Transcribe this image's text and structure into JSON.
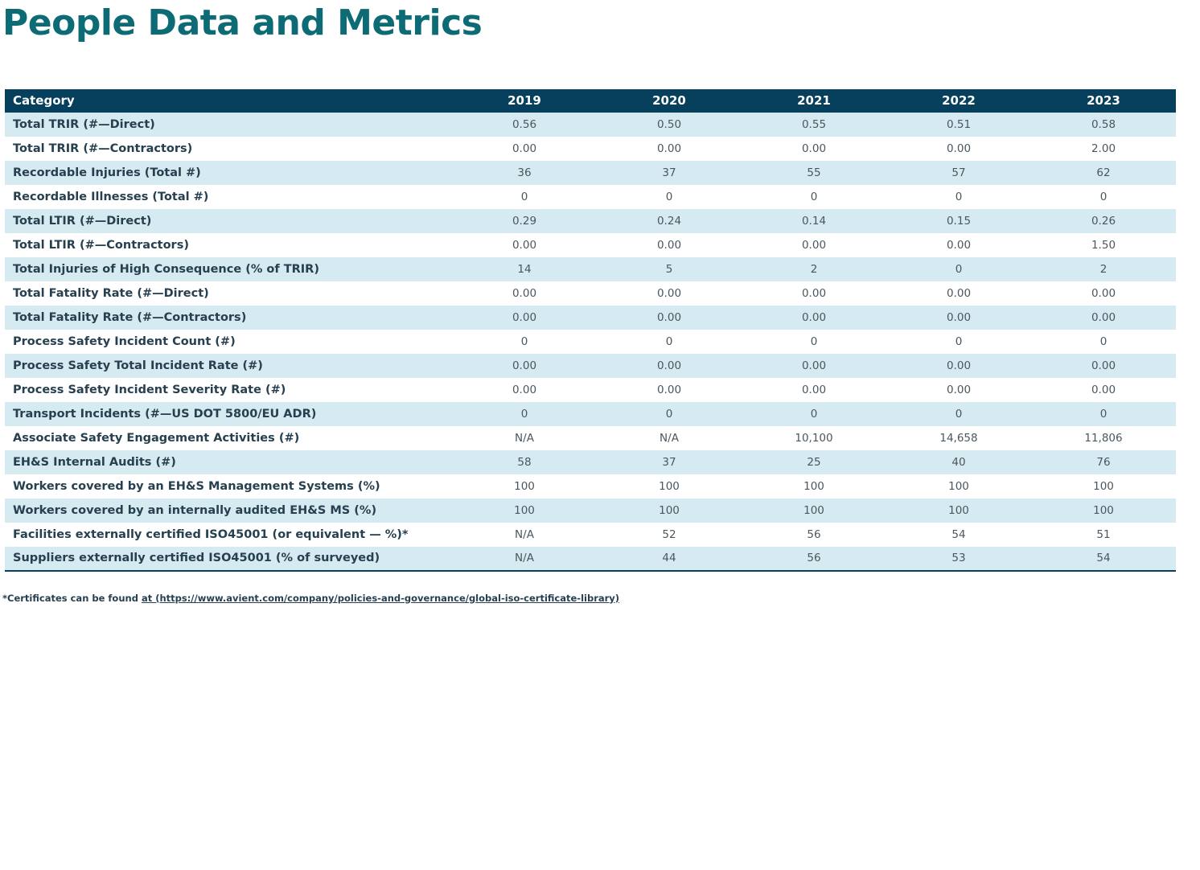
{
  "page": {
    "title": "People Data and Metrics"
  },
  "table": {
    "columns": [
      "Category",
      "2019",
      "2020",
      "2021",
      "2022",
      "2023"
    ],
    "rows": [
      {
        "label": "Total TRIR (#—Direct)",
        "values": [
          "0.56",
          "0.50",
          "0.55",
          "0.51",
          "0.58"
        ]
      },
      {
        "label": "Total TRIR (#—Contractors)",
        "values": [
          "0.00",
          "0.00",
          "0.00",
          "0.00",
          "2.00"
        ]
      },
      {
        "label": "Recordable Injuries (Total #)",
        "values": [
          "36",
          "37",
          "55",
          "57",
          "62"
        ]
      },
      {
        "label": "Recordable Illnesses (Total #)",
        "values": [
          "0",
          "0",
          "0",
          "0",
          "0"
        ]
      },
      {
        "label": "Total LTIR (#—Direct)",
        "values": [
          "0.29",
          "0.24",
          "0.14",
          "0.15",
          "0.26"
        ]
      },
      {
        "label": "Total LTIR (#—Contractors)",
        "values": [
          "0.00",
          "0.00",
          "0.00",
          "0.00",
          "1.50"
        ]
      },
      {
        "label": "Total Injuries of High Consequence (% of TRIR)",
        "values": [
          "14",
          "5",
          "2",
          "0",
          "2"
        ]
      },
      {
        "label": "Total Fatality Rate (#—Direct)",
        "values": [
          "0.00",
          "0.00",
          "0.00",
          "0.00",
          "0.00"
        ]
      },
      {
        "label": "Total Fatality Rate (#—Contractors)",
        "values": [
          "0.00",
          "0.00",
          "0.00",
          "0.00",
          "0.00"
        ]
      },
      {
        "label": "Process Safety Incident Count (#)",
        "values": [
          "0",
          "0",
          "0",
          "0",
          "0"
        ]
      },
      {
        "label": "Process Safety Total Incident Rate (#)",
        "values": [
          "0.00",
          "0.00",
          "0.00",
          "0.00",
          "0.00"
        ]
      },
      {
        "label": "Process Safety Incident Severity Rate (#)",
        "values": [
          "0.00",
          "0.00",
          "0.00",
          "0.00",
          "0.00"
        ]
      },
      {
        "label": "Transport Incidents (#—US DOT 5800/EU ADR)",
        "values": [
          "0",
          "0",
          "0",
          "0",
          "0"
        ]
      },
      {
        "label": "Associate Safety Engagement Activities (#)",
        "values": [
          "N/A",
          "N/A",
          "10,100",
          "14,658",
          "11,806"
        ]
      },
      {
        "label": "EH&S Internal Audits (#)",
        "values": [
          "58",
          "37",
          "25",
          "40",
          "76"
        ]
      },
      {
        "label": "Workers covered by an EH&S Management Systems (%)",
        "values": [
          "100",
          "100",
          "100",
          "100",
          "100"
        ]
      },
      {
        "label": "Workers covered by an internally audited EH&S MS (%)",
        "values": [
          "100",
          "100",
          "100",
          "100",
          "100"
        ]
      },
      {
        "label": "Facilities externally certified ISO45001 (or equivalent — %)*",
        "values": [
          "N/A",
          "52",
          "56",
          "54",
          "51"
        ]
      },
      {
        "label": "Suppliers externally certified ISO45001 (% of surveyed)",
        "values": [
          "N/A",
          "44",
          "56",
          "53",
          "54"
        ]
      }
    ]
  },
  "footnote": {
    "prefix": "*Certificates can be found ",
    "link_text": "at (https://www.avient.com/company/policies-and-governance/global-iso-certificate-library)"
  },
  "colors": {
    "title": "#0c6b74",
    "header_bg": "#07405c",
    "row_alt_bg": "#d5eaf1",
    "label_text": "#27404f",
    "value_text": "#4b565e"
  }
}
